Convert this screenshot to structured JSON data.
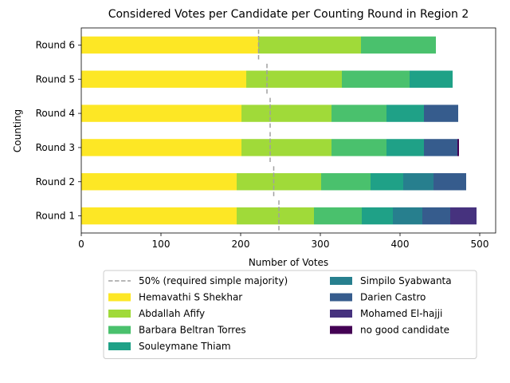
{
  "chart_data": {
    "type": "bar",
    "orientation": "horizontal",
    "stacked": true,
    "title": "Considered Votes per Candidate per Counting Round in Region 2",
    "xlabel": "Number of Votes",
    "ylabel": "Counting",
    "xlim": [
      0,
      520
    ],
    "xticks": [
      0,
      100,
      200,
      300,
      400,
      500
    ],
    "categories": [
      "Round 1",
      "Round 2",
      "Round 3",
      "Round 4",
      "Round 5",
      "Round 6"
    ],
    "majority_line": {
      "name": "50% (required simple majority)",
      "color": "#a0a0a0",
      "values": [
        248,
        241.5,
        237,
        237,
        233,
        222.5
      ]
    },
    "series": [
      {
        "name": "Hemavathi S Shekhar",
        "color": "#fde725",
        "values": [
          195,
          195,
          201,
          201,
          207,
          222
        ]
      },
      {
        "name": "Abdallah Afify",
        "color": "#a0da39",
        "values": [
          97,
          106,
          113,
          113,
          120,
          129
        ]
      },
      {
        "name": "Barbara Beltran Torres",
        "color": "#4ac16d",
        "values": [
          60,
          62,
          69,
          69,
          85,
          94
        ]
      },
      {
        "name": "Souleymane Thiam",
        "color": "#1fa187",
        "values": [
          39,
          41,
          47,
          47,
          54,
          0
        ]
      },
      {
        "name": "Simpilo Syabwanta",
        "color": "#277f8e",
        "values": [
          37,
          38,
          0,
          0,
          0,
          0
        ]
      },
      {
        "name": "Darien Castro",
        "color": "#365c8d",
        "values": [
          35,
          41,
          42,
          43,
          0,
          0
        ]
      },
      {
        "name": "Mohamed El-hajji",
        "color": "#46327e",
        "values": [
          33,
          0,
          0,
          0,
          0,
          0
        ]
      },
      {
        "name": "no good candidate",
        "color": "#440154",
        "values": [
          0,
          0,
          2,
          0,
          0,
          0
        ]
      }
    ],
    "legend_position": "bottom-center",
    "legend_columns": 2,
    "grid": false
  }
}
